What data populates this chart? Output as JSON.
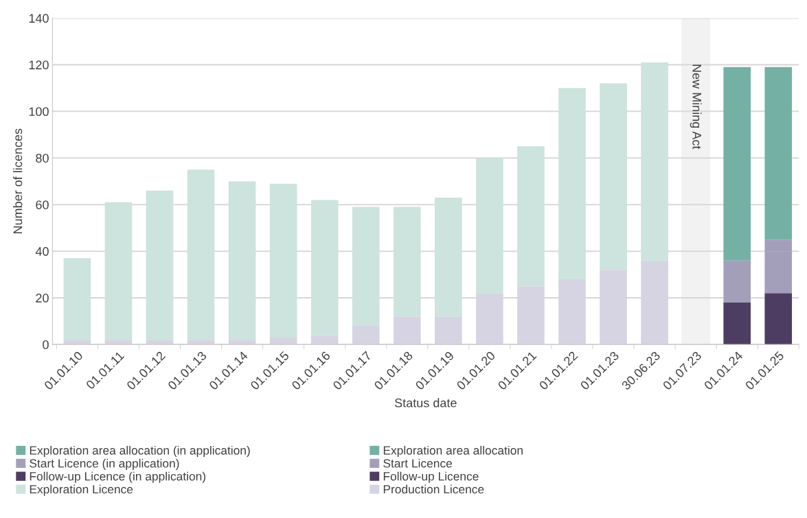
{
  "chart_data": {
    "type": "bar",
    "stacked": true,
    "xlabel": "Status date",
    "ylabel": "Number of licences",
    "categories": [
      "01.01.10",
      "01.01.11",
      "01.01.12",
      "01.01.13",
      "01.01.14",
      "01.01.15",
      "01.01.16",
      "01.01.17",
      "01.01.18",
      "01.01.19",
      "01.01.20",
      "01.01.21",
      "01.01.22",
      "01.01.23",
      "30.06.23",
      "01.07.23",
      "01.01.24",
      "01.01.25"
    ],
    "series": [
      {
        "name": "Production Licence",
        "color": "#d6d4e2",
        "values": [
          2,
          2,
          2,
          2,
          2,
          3,
          4,
          8,
          12,
          12,
          22,
          25,
          28,
          32,
          36,
          null,
          null,
          null
        ]
      },
      {
        "name": "Exploration Licence",
        "color": "#cde3dd",
        "values": [
          35,
          59,
          64,
          73,
          68,
          66,
          58,
          51,
          47,
          51,
          58,
          60,
          82,
          80,
          85,
          null,
          null,
          null
        ]
      },
      {
        "name": "Follow-up Licence",
        "color": "#4e3d62",
        "values": [
          null,
          null,
          null,
          null,
          null,
          null,
          null,
          null,
          null,
          null,
          null,
          null,
          null,
          null,
          null,
          null,
          18,
          18
        ]
      },
      {
        "name": "Follow-up Licence (in application)",
        "color": "#4e3d62",
        "values": [
          null,
          null,
          null,
          null,
          null,
          null,
          null,
          null,
          null,
          null,
          null,
          null,
          null,
          null,
          null,
          null,
          null,
          4
        ]
      },
      {
        "name": "Start Licence",
        "color": "#a39fbb",
        "values": [
          null,
          null,
          null,
          null,
          null,
          null,
          null,
          null,
          null,
          null,
          null,
          null,
          null,
          null,
          null,
          null,
          18,
          18
        ]
      },
      {
        "name": "Start Licence (in application)",
        "color": "#a39fbb",
        "values": [
          null,
          null,
          null,
          null,
          null,
          null,
          null,
          null,
          null,
          null,
          null,
          null,
          null,
          null,
          null,
          null,
          null,
          5
        ]
      },
      {
        "name": "Exploration area allocation",
        "color": "#75b0a4",
        "values": [
          null,
          null,
          null,
          null,
          null,
          null,
          null,
          null,
          null,
          null,
          null,
          null,
          null,
          null,
          null,
          null,
          83,
          74
        ]
      },
      {
        "name": "Exploration area allocation (in application)",
        "color": "#75b0a4",
        "values": [
          null,
          null,
          null,
          null,
          null,
          null,
          null,
          null,
          null,
          null,
          null,
          null,
          null,
          null,
          null,
          null,
          null,
          null
        ]
      }
    ],
    "ylim": [
      0,
      140
    ],
    "yticks": [
      0,
      20,
      40,
      60,
      80,
      100,
      120,
      140
    ],
    "grid": "y",
    "legend": "bottom",
    "bands": [
      {
        "axis": "x",
        "from": "01.07.23",
        "to": "01.07.23",
        "label": "New Mining Act",
        "color": "#f2f2f2"
      }
    ]
  }
}
